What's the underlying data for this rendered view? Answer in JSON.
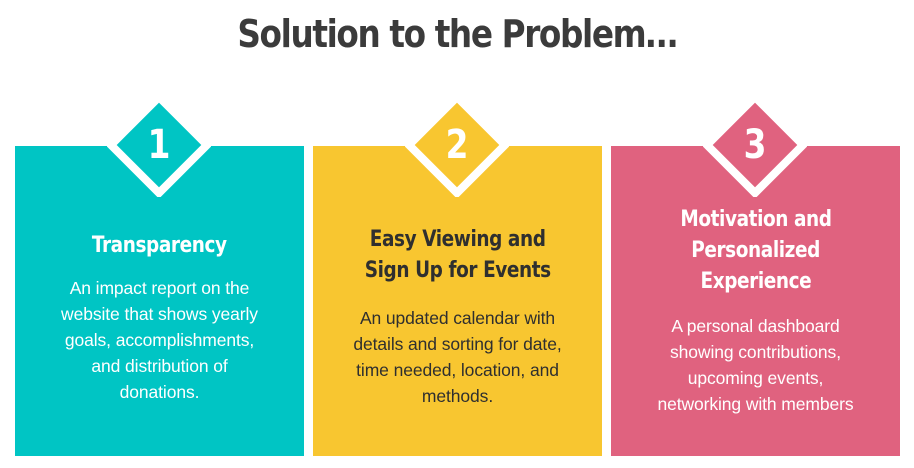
{
  "title": "Solution to the Problem…",
  "colors": {
    "card_1": "#00c5c4",
    "card_2": "#f8c630",
    "card_3": "#e0627f",
    "title": "#3b3b3b",
    "dark_text": "#2f2f2f"
  },
  "cards": [
    {
      "number": "1",
      "heading_lines": [
        "Transparency"
      ],
      "body_lines": [
        "An impact report on the",
        "website that shows yearly",
        "goals, accomplishments,",
        "and distribution of",
        "donations."
      ]
    },
    {
      "number": "2",
      "heading_lines": [
        "Easy Viewing and",
        "Sign Up for Events"
      ],
      "body_lines": [
        "An updated calendar with",
        "details and sorting for date,",
        "time needed, location, and",
        "methods."
      ]
    },
    {
      "number": "3",
      "heading_lines": [
        "Motivation and",
        "Personalized",
        "Experience"
      ],
      "body_lines": [
        "A personal dashboard",
        "showing contributions,",
        "upcoming events,",
        "networking with members"
      ]
    }
  ]
}
